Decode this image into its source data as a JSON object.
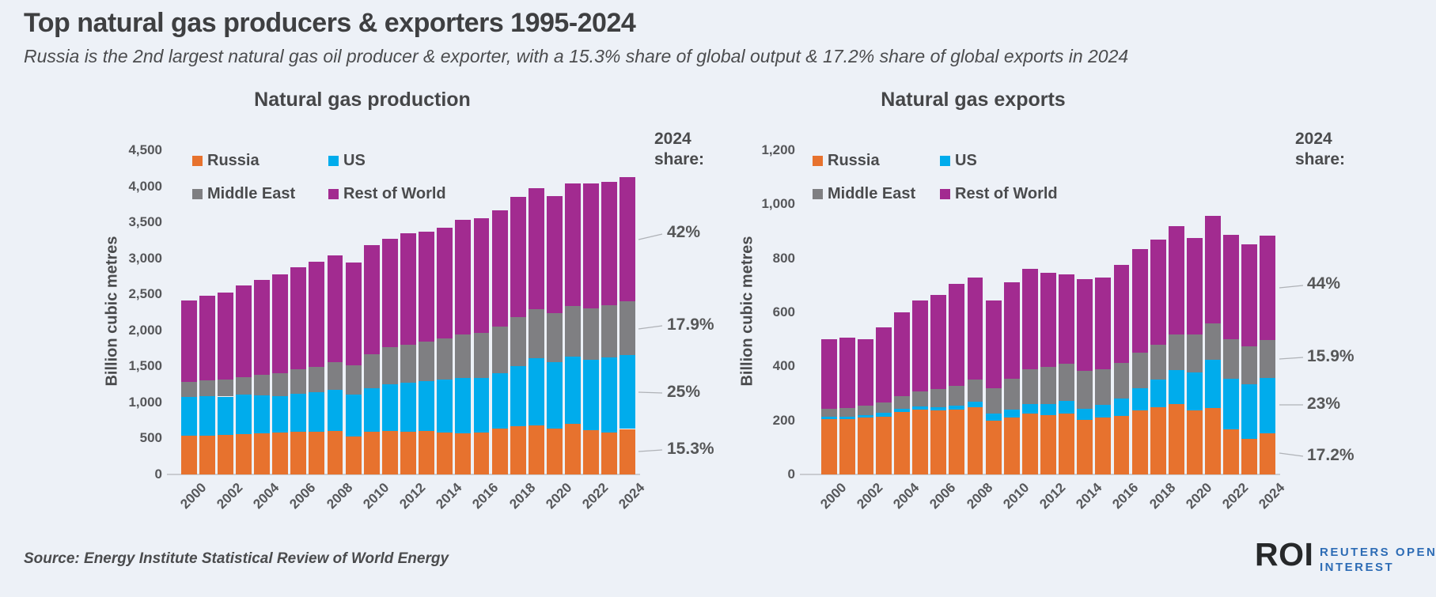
{
  "header": {
    "title": "Top natural gas producers & exporters 1995-2024",
    "subtitle": "Russia is the 2nd largest natural gas oil producer & exporter, with a 15.3% share of global output & 17.2% share of global exports in 2024"
  },
  "footer": {
    "source": "Source: Energy Institute Statistical Review of World Energy",
    "logo": {
      "mark": "ROI",
      "line1": "REUTERS OPEN",
      "line2": "INTEREST"
    }
  },
  "colors": {
    "background": "#EDF1F7",
    "russia": "#E7722E",
    "us": "#00ACEC",
    "middle_east": "#7F7F82",
    "rest_of_world": "#A22B90",
    "leader_line": "#AFB2B7",
    "axis_line": "#C9CCD1",
    "logo_blue": "#2D6CB5"
  },
  "chart_data": [
    {
      "type": "bar",
      "stacked": true,
      "title": "Natural gas production",
      "ylabel": "Billion cubic metres",
      "ylim": [
        0,
        4500
      ],
      "ytick_step": 500,
      "xtick_every": 2,
      "grid": false,
      "legend_position": "top-inside",
      "categories": [
        2000,
        2001,
        2002,
        2003,
        2004,
        2005,
        2006,
        2007,
        2008,
        2009,
        2010,
        2011,
        2012,
        2013,
        2014,
        2015,
        2016,
        2017,
        2018,
        2019,
        2020,
        2021,
        2022,
        2023,
        2024
      ],
      "series": [
        {
          "name": "Russia",
          "color": "#E7722E",
          "values": [
            537,
            536,
            545,
            564,
            573,
            580,
            595,
            592,
            601,
            527,
            588,
            607,
            592,
            604,
            581,
            575,
            579,
            635,
            669,
            679,
            638,
            702,
            618,
            586,
            631
          ]
        },
        {
          "name": "US",
          "color": "#00ACEC",
          "values": [
            543,
            555,
            536,
            540,
            526,
            511,
            524,
            545,
            571,
            584,
            604,
            649,
            681,
            686,
            733,
            767,
            756,
            772,
            840,
            930,
            916,
            934,
            978,
            1035,
            1031
          ]
        },
        {
          "name": "Middle East",
          "color": "#7F7F82",
          "values": [
            208,
            219,
            232,
            248,
            280,
            309,
            336,
            355,
            387,
            400,
            472,
            513,
            526,
            554,
            578,
            602,
            630,
            650,
            670,
            685,
            687,
            706,
            714,
            724,
            738
          ]
        },
        {
          "name": "Rest of World",
          "color": "#A22B90",
          "values": [
            1125,
            1168,
            1211,
            1266,
            1322,
            1380,
            1418,
            1461,
            1484,
            1434,
            1514,
            1507,
            1544,
            1525,
            1532,
            1587,
            1586,
            1611,
            1672,
            1682,
            1620,
            1694,
            1734,
            1714,
            1724
          ]
        }
      ],
      "share_header": "2024\nshare:",
      "shares": [
        {
          "series": "Rest of World",
          "label": "42%"
        },
        {
          "series": "Middle East",
          "label": "17.9%"
        },
        {
          "series": "US",
          "label": "25%"
        },
        {
          "series": "Russia",
          "label": "15.3%"
        }
      ]
    },
    {
      "type": "bar",
      "stacked": true,
      "title": "Natural gas exports",
      "ylabel": "Billion cubic metres",
      "ylim": [
        0,
        1200
      ],
      "ytick_step": 200,
      "xtick_every": 2,
      "grid": false,
      "legend_position": "top-inside",
      "categories": [
        2000,
        2001,
        2002,
        2003,
        2004,
        2005,
        2006,
        2007,
        2008,
        2009,
        2010,
        2011,
        2012,
        2013,
        2014,
        2015,
        2016,
        2017,
        2018,
        2019,
        2020,
        2021,
        2022,
        2023,
        2024
      ],
      "series": [
        {
          "name": "Russia",
          "color": "#E7722E",
          "values": [
            205,
            205,
            210,
            215,
            230,
            240,
            238,
            240,
            250,
            200,
            210,
            225,
            220,
            225,
            202,
            212,
            217,
            237,
            249,
            260,
            238,
            245,
            168,
            131,
            152
          ]
        },
        {
          "name": "US",
          "color": "#00ACEC",
          "values": [
            10,
            10,
            10,
            12,
            12,
            12,
            12,
            15,
            20,
            25,
            30,
            35,
            40,
            46,
            40,
            46,
            63,
            83,
            101,
            125,
            140,
            179,
            187,
            203,
            204
          ]
        },
        {
          "name": "Middle East",
          "color": "#7F7F82",
          "values": [
            28,
            32,
            35,
            40,
            48,
            55,
            65,
            72,
            80,
            95,
            115,
            130,
            138,
            138,
            141,
            131,
            132,
            131,
            130,
            133,
            139,
            135,
            146,
            141,
            141
          ]
        },
        {
          "name": "Rest of World",
          "color": "#A22B90",
          "values": [
            257,
            258,
            245,
            278,
            310,
            338,
            350,
            378,
            380,
            325,
            355,
            370,
            347,
            331,
            339,
            341,
            363,
            384,
            390,
            400,
            359,
            398,
            385,
            378,
            388
          ]
        }
      ],
      "share_header": "2024\nshare:",
      "shares": [
        {
          "series": "Rest of World",
          "label": "44%"
        },
        {
          "series": "Middle East",
          "label": "15.9%"
        },
        {
          "series": "US",
          "label": "23%"
        },
        {
          "series": "Russia",
          "label": "17.2%"
        }
      ]
    }
  ]
}
